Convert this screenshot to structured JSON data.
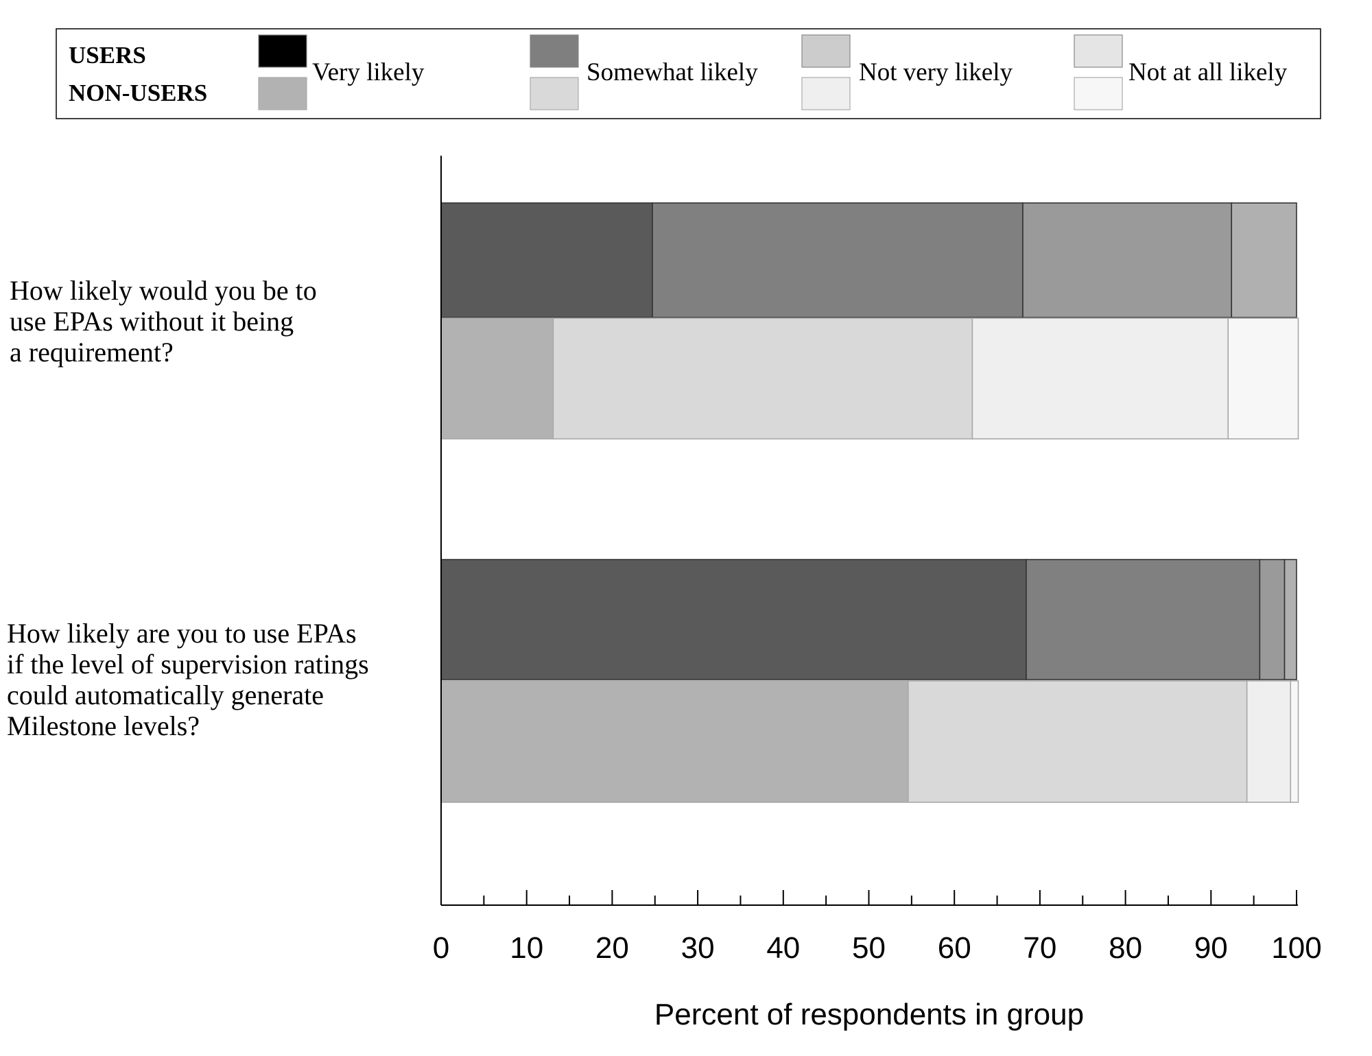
{
  "chart_data": {
    "type": "bar",
    "orientation": "horizontal",
    "stacked": true,
    "xlabel": "Percent of respondents in group",
    "ylabel": "",
    "xlim": [
      0,
      100
    ],
    "x_ticks": [
      0,
      10,
      20,
      30,
      40,
      50,
      60,
      70,
      80,
      90,
      100
    ],
    "grid": false,
    "legend": {
      "position": "top",
      "group_labels": [
        "USERS",
        "NON-USERS"
      ],
      "entries": [
        "Very likely",
        "Somewhat likely",
        "Not very likely",
        "Not at all likely"
      ],
      "colors": {
        "users": [
          "#000000",
          "#7f7f7f",
          "#cccccc",
          "#e5e5e5"
        ],
        "non_users": [
          "#b2b2b2",
          "#d9d9d9",
          "#efefef",
          "#f7f7f7"
        ]
      }
    },
    "bar_colors": {
      "users": [
        "#5a5a5a",
        "#808080",
        "#9a9a9a",
        "#b0b0b0"
      ],
      "non_users": [
        "#b2b2b2",
        "#d9d9d9",
        "#efefef",
        "#f7f7f7"
      ]
    },
    "categories": [
      {
        "label_lines": [
          "How likely would you be to",
          "use EPAs without it being",
          "a  requirement?"
        ],
        "users": [
          24.7,
          43.3,
          24.4,
          7.6
        ],
        "non_users": [
          13.1,
          49.0,
          29.9,
          8.2
        ]
      },
      {
        "label_lines": [
          "How likely are you to use EPAs",
          "if the level of supervision ratings",
          "could automatically generate",
          "Milestone levels?"
        ],
        "users": [
          68.4,
          27.3,
          2.9,
          1.4
        ],
        "non_users": [
          54.6,
          39.6,
          5.1,
          0.9
        ]
      }
    ]
  }
}
